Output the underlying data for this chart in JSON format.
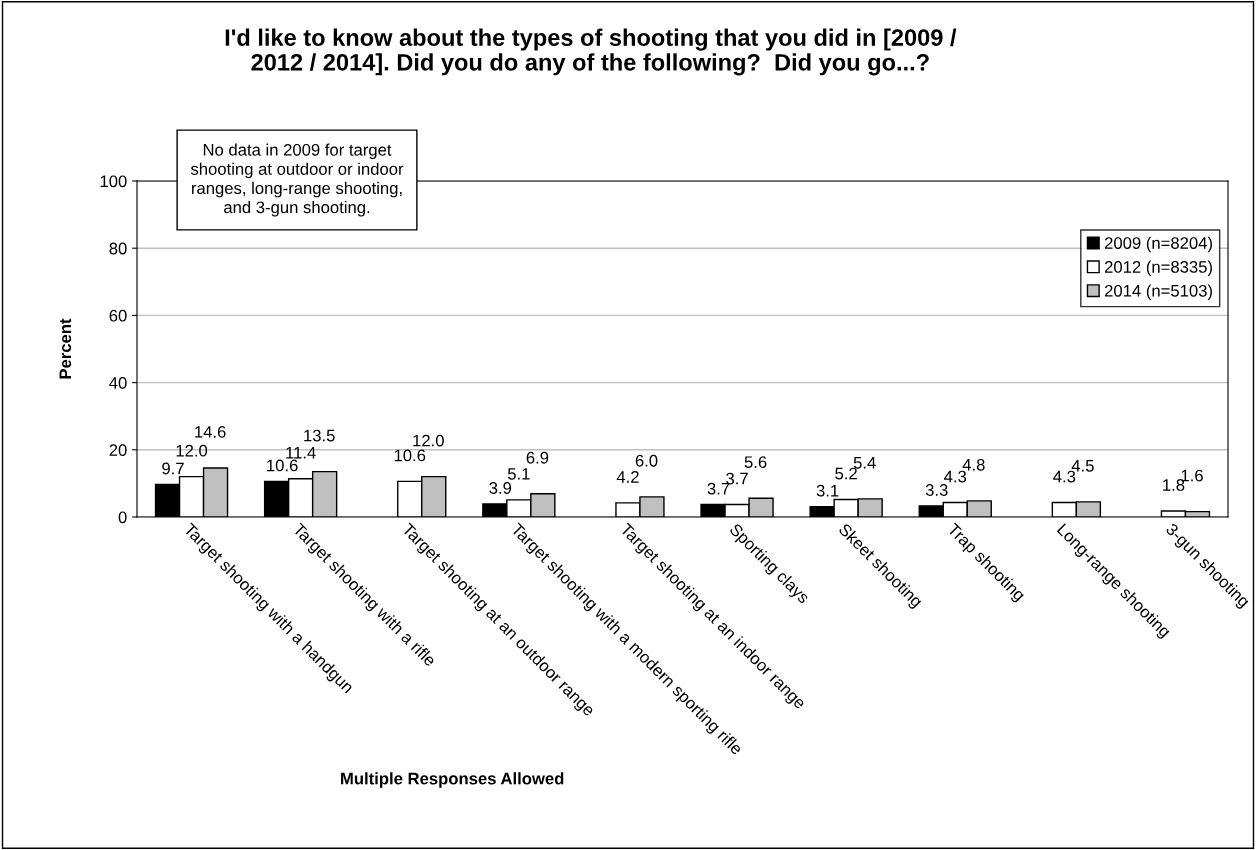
{
  "chart_data": {
    "type": "bar",
    "title": "I'd like to know about the types of shooting that you did in [2009 /\n2012 / 2014]. Did you do any of the following?  Did you go...?",
    "xlabel": "Multiple Responses Allowed",
    "ylabel": "Percent",
    "annotations": [
      "No data in 2009 for target\nshooting at outdoor or indoor\nranges, long-range shooting,\nand 3-gun shooting."
    ],
    "categories": [
      "Target shooting with a handgun",
      "Target shooting with a rifle",
      "Target shooting at an outdoor range",
      "Target shooting with a modern sporting rifle",
      "Target shooting at an indoor range",
      "Sporting clays",
      "Skeet shooting",
      "Trap shooting",
      "Long-range shooting",
      "3-gun shooting"
    ],
    "series": [
      {
        "name": "2009 (n=8204)",
        "color": "#000000",
        "values": [
          9.7,
          10.6,
          null,
          3.9,
          null,
          3.7,
          3.1,
          3.3,
          null,
          null
        ],
        "value_labels": [
          "9.7",
          "10.6",
          null,
          "3.9",
          null,
          "3.7",
          "3.1",
          "3.3",
          null,
          null
        ]
      },
      {
        "name": "2012 (n=8335)",
        "color": "#ffffff",
        "values": [
          12.0,
          11.4,
          10.6,
          5.1,
          4.2,
          3.7,
          5.2,
          4.3,
          4.3,
          1.8
        ],
        "value_labels": [
          "12.0",
          "11.4",
          "10.6",
          "5.1",
          "4.2",
          "3.7",
          "5.2",
          "4.3",
          "4.3",
          "1.8"
        ]
      },
      {
        "name": "2014 (n=5103)",
        "color": "#c0c0c0",
        "values": [
          14.6,
          13.5,
          12.0,
          6.9,
          6.0,
          5.6,
          5.4,
          4.8,
          4.5,
          1.6
        ],
        "value_labels": [
          "14.6",
          "13.5",
          "12.0",
          "6.9",
          "6.0",
          "5.6",
          "5.4",
          "4.8",
          "4.5",
          "1.6"
        ]
      }
    ],
    "ylim": [
      0,
      100
    ],
    "yticks": [
      0,
      20,
      40,
      60,
      80,
      100
    ],
    "grid": "y",
    "legend": "right"
  }
}
